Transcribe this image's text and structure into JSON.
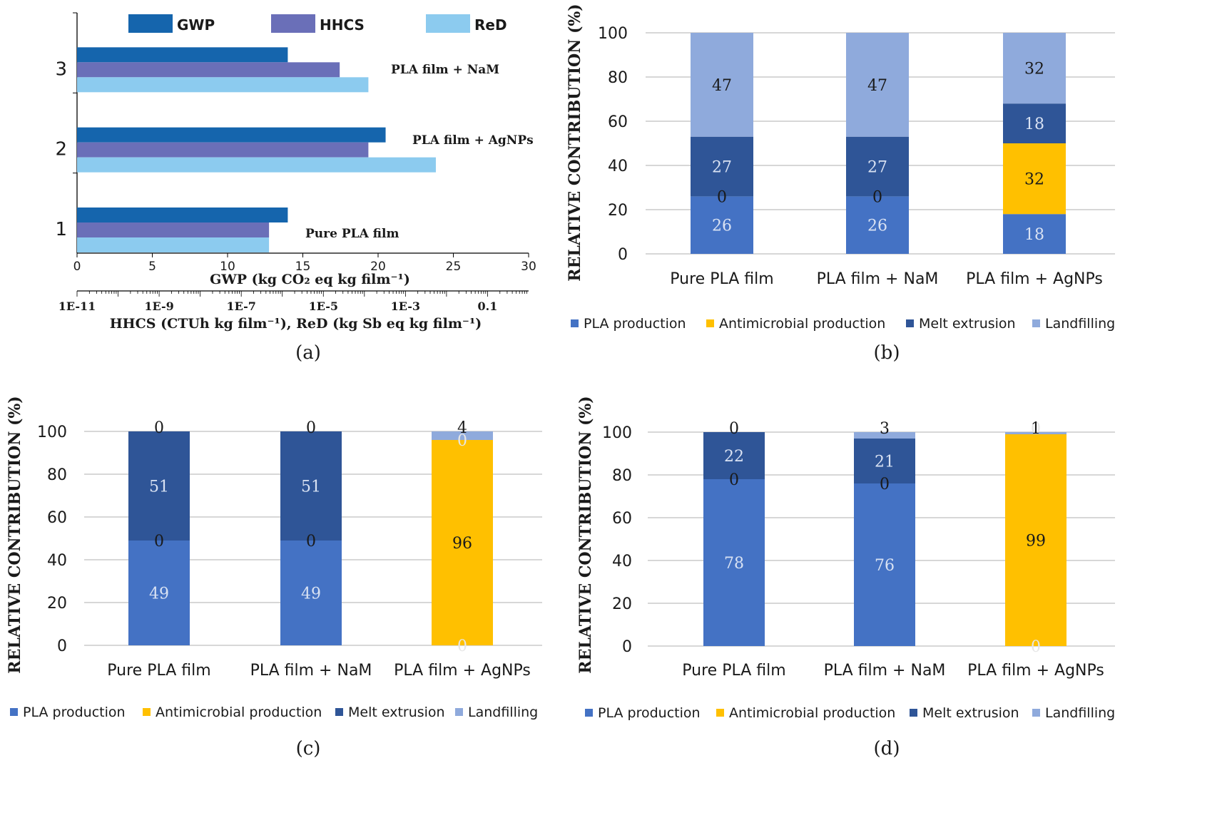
{
  "figure": {
    "panel_labels": [
      "(a)",
      "(b)",
      "(c)",
      "(d)"
    ]
  },
  "colors": {
    "gwp": "#1565ad",
    "hhcs": "#6a6fb8",
    "red": "#8ccbef",
    "pla_production": "#4472c4",
    "antimicrobial_production": "#ffc000",
    "melt_extrusion": "#2f5597",
    "landfilling": "#8faadc",
    "grid": "#bfbfbf",
    "axis": "#595959"
  },
  "chart_data": [
    {
      "id": "a",
      "type": "bar",
      "orientation": "horizontal",
      "categories": [
        "1",
        "2",
        "3"
      ],
      "category_annotations": [
        "Pure PLA film",
        "PLA film + AgNPs",
        "PLA film + NaM"
      ],
      "series": [
        {
          "name": "GWP",
          "values": [
            14.0,
            20.5,
            14.0
          ]
        },
        {
          "name": "HHCS",
          "values": [
            4.75e-07,
            0.000125,
            2.5e-05
          ]
        },
        {
          "name": "ReD",
          "values": [
            4.75e-07,
            0.0055,
            0.000125
          ]
        }
      ],
      "xlabel_top": "GWP (kg CO₂ eq kg film⁻¹)",
      "xlabel_bottom": "HHCS (CTUh kg film⁻¹), ReD (kg Sb eq kg film⁻¹)",
      "xlim_top": [
        0,
        30
      ],
      "xticks_top": [
        "0",
        "5",
        "10",
        "15",
        "20",
        "25",
        "30"
      ],
      "xlim_bottom_log10": [
        -11,
        0
      ],
      "xticks_bottom": [
        "1E-11",
        "1E-9",
        "1E-7",
        "1E-5",
        "1E-3",
        "0.1"
      ],
      "legend_position": "top"
    },
    {
      "id": "b",
      "type": "bar",
      "stacked": true,
      "categories": [
        "Pure PLA film",
        "PLA film + NaM",
        "PLA film +  AgNPs"
      ],
      "series": [
        {
          "name": "PLA production",
          "values": [
            26,
            26,
            18
          ]
        },
        {
          "name": "Antimicrobial production",
          "values": [
            0,
            0,
            32
          ]
        },
        {
          "name": "Melt extrusion",
          "values": [
            27,
            27,
            18
          ]
        },
        {
          "name": "Landfilling",
          "values": [
            47,
            47,
            32
          ]
        }
      ],
      "ylabel": "RELATIVE CONTRIBUTION (%)",
      "ylim": [
        0,
        100
      ],
      "yticks": [
        "0",
        "20",
        "40",
        "60",
        "80",
        "100"
      ],
      "legend_position": "bottom"
    },
    {
      "id": "c",
      "type": "bar",
      "stacked": true,
      "categories": [
        "Pure PLA film",
        "PLA film + NaM",
        "PLA film +  AgNPs"
      ],
      "series": [
        {
          "name": "PLA production",
          "values": [
            49,
            49,
            0
          ]
        },
        {
          "name": "Antimicrobial production",
          "values": [
            0,
            0,
            96
          ]
        },
        {
          "name": "Melt extrusion",
          "values": [
            51,
            51,
            0
          ]
        },
        {
          "name": "Landfilling",
          "values": [
            0,
            0,
            4
          ]
        }
      ],
      "ylabel": "RELATIVE CONTRIBUTION (%)",
      "ylim": [
        0,
        100
      ],
      "yticks": [
        "0",
        "20",
        "40",
        "60",
        "80",
        "100"
      ],
      "legend_position": "bottom"
    },
    {
      "id": "d",
      "type": "bar",
      "stacked": true,
      "categories": [
        "Pure PLA film",
        "PLA film + NaM",
        "PLA film +  AgNPs"
      ],
      "series": [
        {
          "name": "PLA production",
          "values": [
            78,
            76,
            0
          ]
        },
        {
          "name": "Antimicrobial production",
          "values": [
            0,
            0,
            99
          ]
        },
        {
          "name": "Melt extrusion",
          "values": [
            22,
            21,
            0
          ]
        },
        {
          "name": "Landfilling",
          "values": [
            0,
            3,
            1
          ]
        }
      ],
      "ylabel": "RELATIVE CONTRIBUTION (%)",
      "ylim": [
        0,
        100
      ],
      "yticks": [
        "0",
        "20",
        "40",
        "60",
        "80",
        "100"
      ],
      "legend_position": "bottom"
    }
  ]
}
